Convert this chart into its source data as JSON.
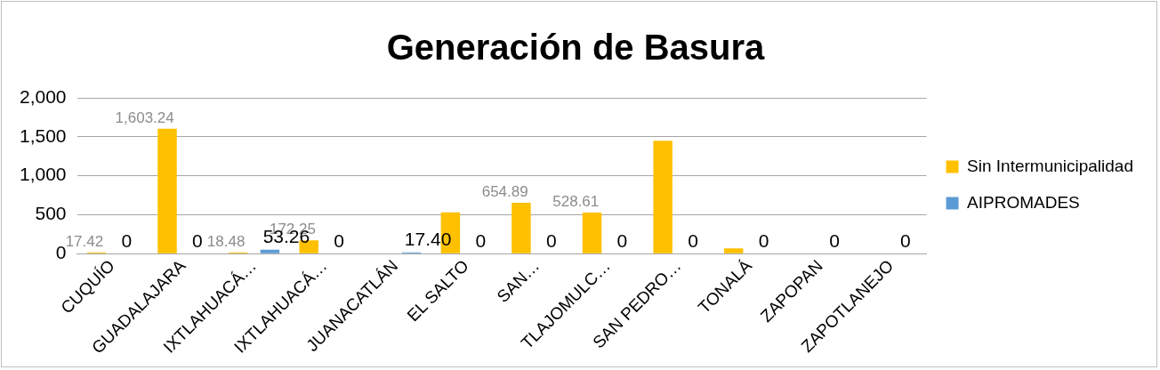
{
  "chart_data": {
    "type": "bar",
    "title": "Generación de Basura",
    "categories": [
      "CUQUÍO",
      "GUADALAJARA",
      "IXTLAHUACÁ…",
      "IXTLAHUACÁ…",
      "JUANACATLÁN",
      "EL SALTO",
      "SAN…",
      "TLAJOMULC…",
      "SAN PEDRO…",
      "TONALÁ",
      "ZAPOPAN",
      "ZAPOTLANEJO"
    ],
    "series": [
      {
        "name": "Sin Intermunicipalidad",
        "color": "#ffc000",
        "values": [
          17.42,
          1603.24,
          18.48,
          172.25,
          null,
          530,
          654.89,
          528.61,
          1450,
          70,
          0,
          0
        ],
        "value_labels": [
          "17.42",
          "1,603.24",
          "18.48",
          "172.25",
          null,
          null,
          "654.89",
          "528.61",
          null,
          null,
          null,
          null
        ]
      },
      {
        "name": "AIPROMADES",
        "color": "#5b9bd5",
        "values": [
          0,
          0,
          53.26,
          0,
          17.4,
          0,
          0,
          0,
          0,
          0,
          0,
          0
        ],
        "value_labels": [
          "0",
          "0",
          "53.26",
          "0",
          "17.40",
          "0",
          "0",
          "0",
          "0",
          "0",
          "0",
          "0"
        ]
      }
    ],
    "ylim": [
      0,
      2000
    ],
    "yticks": [
      0,
      500,
      {
        "value": 1000,
        "label": "1,000"
      },
      {
        "value": 1500,
        "label": "1,500"
      },
      {
        "value": 2000,
        "label": "2,000"
      }
    ],
    "grid": "y",
    "legend": "right"
  }
}
